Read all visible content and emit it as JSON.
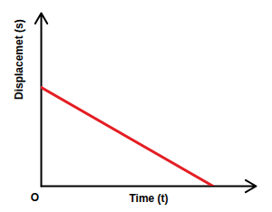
{
  "chart_data": {
    "type": "line",
    "x_label": "Time (t)",
    "y_label": "Displacemet (s)",
    "annotations": [
      "O"
    ],
    "x": [
      0,
      8
    ],
    "values": [
      5.7,
      0
    ],
    "color": "#e31e24",
    "xlim": [
      0,
      10
    ],
    "ylim": [
      0,
      10
    ],
    "tick_labels": false,
    "grid": false
  }
}
